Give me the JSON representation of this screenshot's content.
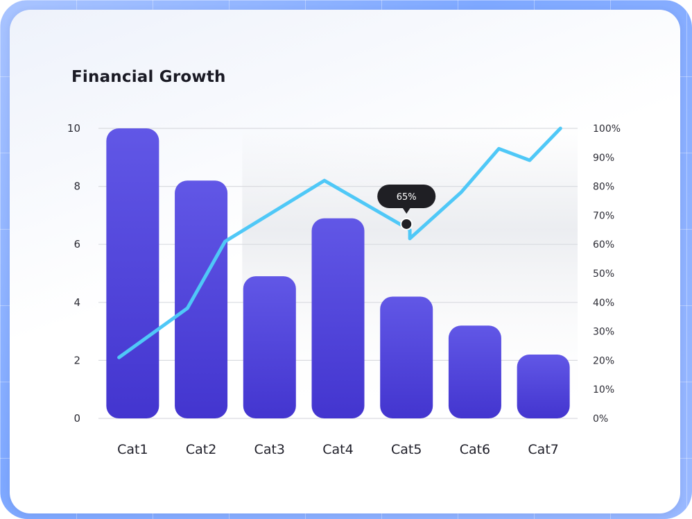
{
  "chart_data": {
    "type": "bar",
    "title": "Financial Growth",
    "categories": [
      "Cat1",
      "Cat2",
      "Cat3",
      "Cat4",
      "Cat5",
      "Cat6",
      "Cat7"
    ],
    "values": [
      10,
      8.2,
      4.9,
      6.9,
      4.2,
      3.2,
      2.2
    ],
    "ylim": [
      0,
      10
    ],
    "yticks": [
      "0",
      "2",
      "4",
      "6",
      "8",
      "10"
    ],
    "line": {
      "type": "line",
      "axis": "right",
      "points": [
        {
          "x": 0,
          "y": 21
        },
        {
          "x": 1,
          "y": 38
        },
        {
          "x": 1.55,
          "y": 61
        },
        {
          "x": 3,
          "y": 82
        },
        {
          "x": 4.25,
          "y": 65
        },
        {
          "x": 4.25,
          "y": 65
        },
        {
          "x": 4.25,
          "y": 62
        },
        {
          "x": 5,
          "y": 78
        },
        {
          "x": 5.55,
          "y": 93
        },
        {
          "x": 6,
          "y": 89
        },
        {
          "x": 6.45,
          "y": 100
        }
      ],
      "ylim": [
        0,
        100
      ],
      "yticks": [
        "0%",
        "10%",
        "20%",
        "30%",
        "40%",
        "50%",
        "60%",
        "70%",
        "80%",
        "90%",
        "100%"
      ]
    },
    "tooltip": {
      "label": "65%",
      "x": 4.2,
      "y": 67
    },
    "grid": true,
    "colors": {
      "bar_top": "#6157e6",
      "bar_bottom": "#4335cf",
      "line": "#4fc8f7",
      "tooltip": "#1f1f24"
    }
  }
}
